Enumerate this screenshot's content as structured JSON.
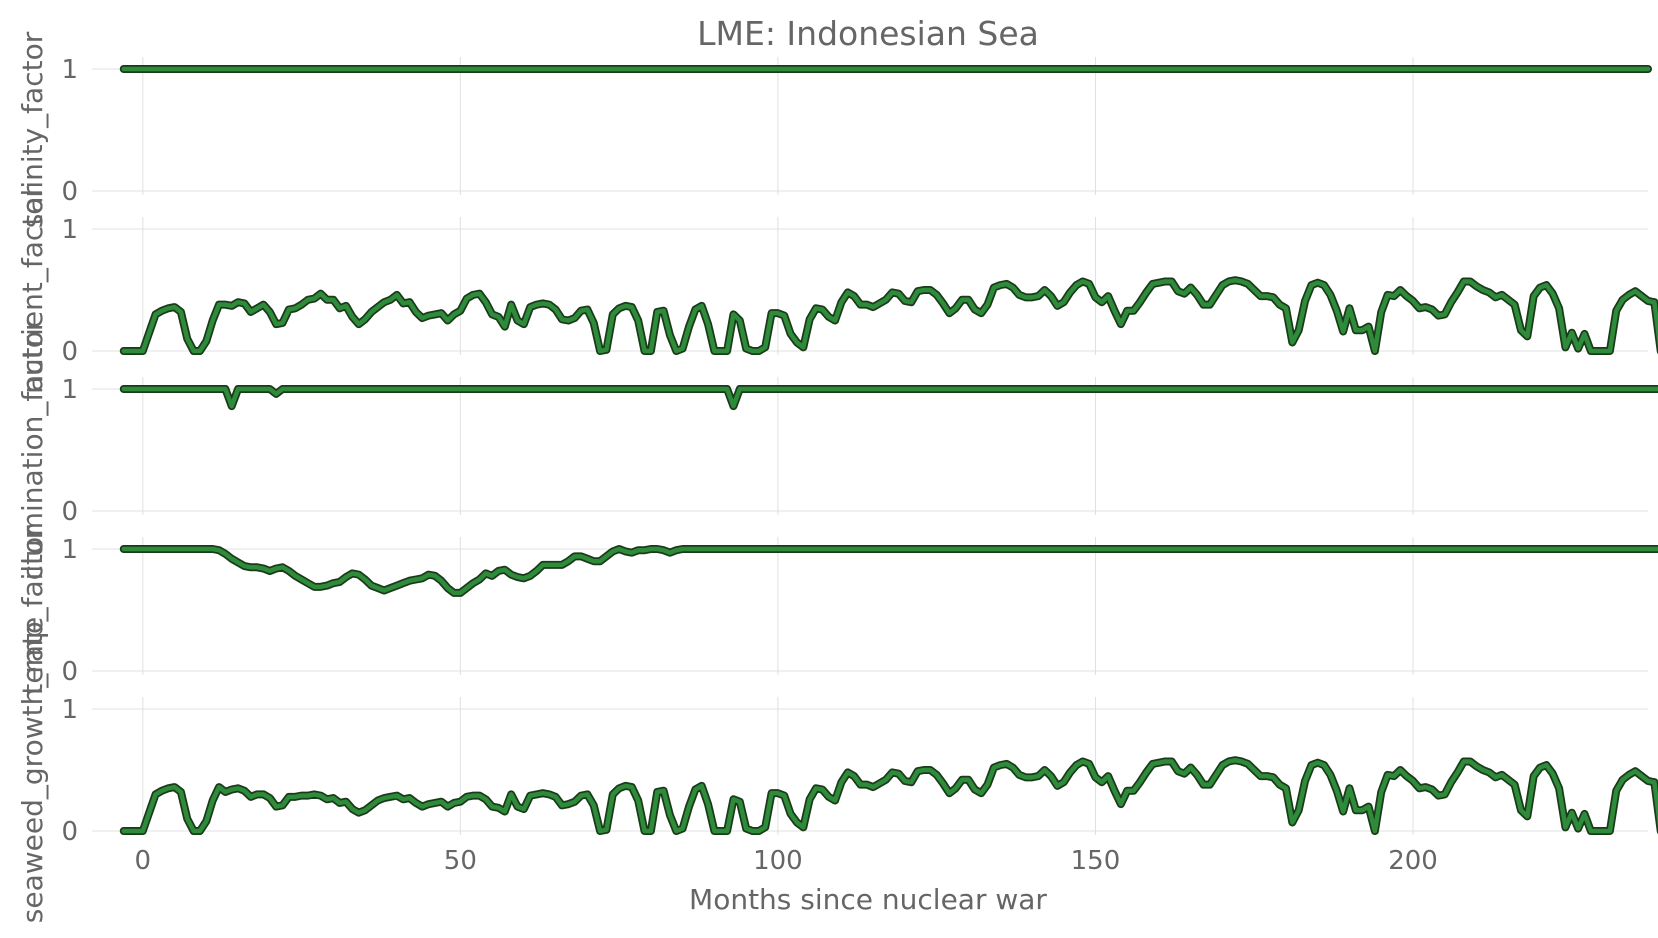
{
  "chart_data": {
    "type": "line",
    "title": "LME: Indonesian Sea",
    "xlabel": "Months since nuclear war",
    "x_ticks": [
      0,
      50,
      100,
      150,
      200
    ],
    "xlim": [
      -8,
      237
    ],
    "grid": true,
    "line_color": "#2e8b3a",
    "line_outline_color": "#1b3a1b",
    "panels": [
      {
        "ylabel": "salinity_factor",
        "y_ticks": [
          0,
          1
        ],
        "ylim": [
          0,
          1
        ],
        "x_start": -3,
        "values": [
          1,
          1,
          1,
          1,
          1,
          1,
          1,
          1,
          1,
          1,
          1,
          1,
          1,
          1,
          1,
          1,
          1,
          1,
          1,
          1,
          1,
          1,
          1,
          1,
          1,
          1,
          1,
          1,
          1,
          1,
          1,
          1,
          1,
          1,
          1,
          1,
          1,
          1,
          1,
          1,
          1,
          1,
          1,
          1,
          1,
          1,
          1,
          1,
          1,
          1,
          1,
          1,
          1,
          1,
          1,
          1,
          1,
          1,
          1,
          1,
          1,
          1,
          1,
          1,
          1,
          1,
          1,
          1,
          1,
          1,
          1,
          1,
          1,
          1,
          1,
          1,
          1,
          1,
          1,
          1,
          1,
          1,
          1,
          1,
          1,
          1,
          1,
          1,
          1,
          1,
          1,
          1,
          1,
          1,
          1,
          1,
          1,
          1,
          1,
          1,
          1,
          1,
          1,
          1,
          1,
          1,
          1,
          1,
          1,
          1,
          1,
          1,
          1,
          1,
          1,
          1,
          1,
          1,
          1,
          1,
          1,
          1,
          1,
          1,
          1,
          1,
          1,
          1,
          1,
          1,
          1,
          1,
          1,
          1,
          1,
          1,
          1,
          1,
          1,
          1,
          1,
          1,
          1,
          1,
          1,
          1,
          1,
          1,
          1,
          1,
          1,
          1,
          1,
          1,
          1,
          1,
          1,
          1,
          1,
          1,
          1,
          1,
          1,
          1,
          1,
          1,
          1,
          1,
          1,
          1,
          1,
          1,
          1,
          1,
          1,
          1,
          1,
          1,
          1,
          1,
          1,
          1,
          1,
          1,
          1,
          1,
          1,
          1,
          1,
          1,
          1,
          1,
          1,
          1,
          1,
          1,
          1,
          1,
          1,
          1,
          1,
          1,
          1,
          1,
          1,
          1,
          1,
          1,
          1,
          1,
          1,
          1,
          1,
          1,
          1,
          1,
          1,
          1,
          1,
          1,
          1,
          1,
          1,
          1,
          1,
          1,
          1,
          1,
          1,
          1,
          1,
          1,
          1,
          1,
          1,
          1,
          1,
          1,
          1,
          1,
          1
        ]
      },
      {
        "ylabel": "nutrient_factor",
        "y_ticks": [
          0,
          1
        ],
        "ylim": [
          0,
          1
        ],
        "x_start": -3,
        "values": [
          0,
          0,
          0,
          0,
          0.15,
          0.3,
          0.33,
          0.35,
          0.36,
          0.32,
          0.1,
          0,
          0,
          0.08,
          0.25,
          0.38,
          0.38,
          0.37,
          0.4,
          0.39,
          0.32,
          0.35,
          0.38,
          0.32,
          0.22,
          0.23,
          0.34,
          0.35,
          0.38,
          0.42,
          0.43,
          0.47,
          0.42,
          0.42,
          0.35,
          0.37,
          0.28,
          0.22,
          0.26,
          0.32,
          0.36,
          0.4,
          0.42,
          0.46,
          0.39,
          0.4,
          0.32,
          0.27,
          0.29,
          0.3,
          0.31,
          0.25,
          0.3,
          0.33,
          0.43,
          0.46,
          0.47,
          0.4,
          0.3,
          0.28,
          0.2,
          0.38,
          0.25,
          0.22,
          0.36,
          0.38,
          0.39,
          0.38,
          0.34,
          0.26,
          0.25,
          0.27,
          0.33,
          0.34,
          0.23,
          0,
          0.01,
          0.3,
          0.35,
          0.37,
          0.36,
          0.25,
          0,
          0,
          0.32,
          0.33,
          0.13,
          0,
          0.02,
          0.2,
          0.34,
          0.37,
          0.22,
          0,
          0,
          0,
          0.3,
          0.25,
          0.02,
          0,
          0,
          0.03,
          0.31,
          0.31,
          0.29,
          0.14,
          0.07,
          0.03,
          0.26,
          0.35,
          0.34,
          0.28,
          0.25,
          0.4,
          0.48,
          0.45,
          0.38,
          0.38,
          0.36,
          0.39,
          0.42,
          0.48,
          0.47,
          0.41,
          0.4,
          0.49,
          0.5,
          0.5,
          0.46,
          0.39,
          0.31,
          0.35,
          0.42,
          0.42,
          0.34,
          0.31,
          0.38,
          0.52,
          0.54,
          0.55,
          0.52,
          0.46,
          0.44,
          0.44,
          0.45,
          0.5,
          0.45,
          0.37,
          0.4,
          0.48,
          0.54,
          0.57,
          0.55,
          0.44,
          0.4,
          0.45,
          0.33,
          0.22,
          0.33,
          0.33,
          0.4,
          0.48,
          0.55,
          0.56,
          0.57,
          0.57,
          0.49,
          0.47,
          0.52,
          0.46,
          0.38,
          0.38,
          0.46,
          0.54,
          0.57,
          0.58,
          0.57,
          0.55,
          0.5,
          0.45,
          0.45,
          0.44,
          0.38,
          0.35,
          0.07,
          0.17,
          0.41,
          0.54,
          0.56,
          0.54,
          0.46,
          0.33,
          0.16,
          0.35,
          0.17,
          0.17,
          0.2,
          0,
          0.32,
          0.46,
          0.45,
          0.5,
          0.45,
          0.41,
          0.35,
          0.36,
          0.34,
          0.29,
          0.3,
          0.4,
          0.48,
          0.57,
          0.57,
          0.53,
          0.5,
          0.48,
          0.44,
          0.46,
          0.42,
          0.38,
          0.17,
          0.12,
          0.45,
          0.52,
          0.54,
          0.47,
          0.35,
          0.03,
          0.15,
          0.02,
          0.14,
          0,
          0,
          0,
          0,
          0.33,
          0.42,
          0.46,
          0.49,
          0.45,
          0.41,
          0.4,
          0
        ]
      },
      {
        "ylabel": "illumination_factor",
        "y_ticks": [
          0,
          1
        ],
        "ylim": [
          0,
          1
        ],
        "x_start": -3,
        "values": [
          1,
          1,
          1,
          1,
          1,
          1,
          1,
          1,
          1,
          1,
          1,
          1,
          1,
          1,
          1,
          1,
          1,
          0.86,
          1,
          1,
          1,
          1,
          1,
          1,
          0.96,
          1,
          1,
          1,
          1,
          1,
          1,
          1,
          1,
          1,
          1,
          1,
          1,
          1,
          1,
          1,
          1,
          1,
          1,
          1,
          1,
          1,
          1,
          1,
          1,
          1,
          1,
          1,
          1,
          1,
          1,
          1,
          1,
          1,
          1,
          1,
          1,
          1,
          1,
          1,
          1,
          1,
          1,
          1,
          1,
          1,
          1,
          1,
          1,
          1,
          1,
          1,
          1,
          1,
          1,
          1,
          1,
          1,
          1,
          1,
          1,
          1,
          1,
          1,
          1,
          1,
          1,
          1,
          1,
          1,
          1,
          1,
          0.86,
          1,
          1,
          1,
          1,
          1,
          1,
          1,
          1,
          1,
          1,
          1,
          1,
          1,
          1,
          1,
          1,
          1,
          1,
          1,
          1,
          1,
          1,
          1,
          1,
          1,
          1,
          1,
          1,
          1,
          1,
          1,
          1,
          1,
          1,
          1,
          1,
          1,
          1,
          1,
          1,
          1,
          1,
          1,
          1,
          1,
          1,
          1,
          1,
          1,
          1,
          1,
          1,
          1,
          1,
          1,
          1,
          1,
          1,
          1,
          1,
          1,
          1,
          1,
          1,
          1,
          1,
          1,
          1,
          1,
          1,
          1,
          1,
          1,
          1,
          1,
          1,
          1,
          1,
          1,
          1,
          1,
          1,
          1,
          1,
          1,
          1,
          1,
          1,
          1,
          1,
          1,
          1,
          1,
          1,
          1,
          1,
          1,
          1,
          1,
          1,
          1,
          1,
          1,
          1,
          1,
          1,
          1,
          1,
          1,
          1,
          1,
          1,
          1,
          1,
          1,
          1,
          1,
          1,
          1,
          1,
          1,
          1,
          1,
          1,
          1,
          1,
          1,
          1,
          1,
          1,
          1,
          1,
          1,
          1,
          1,
          1,
          1,
          1,
          1,
          1,
          1,
          1,
          1,
          1,
          1,
          1,
          1,
          1,
          1
        ]
      },
      {
        "ylabel": "temp_factor",
        "y_ticks": [
          0,
          1
        ],
        "ylim": [
          0,
          1
        ],
        "x_start": -3,
        "values": [
          1,
          1,
          1,
          1,
          1,
          1,
          1,
          1,
          1,
          1,
          1,
          1,
          1,
          1,
          1,
          0.99,
          0.96,
          0.92,
          0.89,
          0.86,
          0.85,
          0.85,
          0.84,
          0.82,
          0.84,
          0.85,
          0.82,
          0.78,
          0.75,
          0.72,
          0.69,
          0.69,
          0.7,
          0.72,
          0.73,
          0.77,
          0.8,
          0.79,
          0.75,
          0.7,
          0.68,
          0.66,
          0.68,
          0.7,
          0.72,
          0.74,
          0.75,
          0.76,
          0.79,
          0.78,
          0.74,
          0.68,
          0.64,
          0.64,
          0.68,
          0.72,
          0.75,
          0.8,
          0.78,
          0.82,
          0.83,
          0.79,
          0.77,
          0.76,
          0.78,
          0.82,
          0.87,
          0.87,
          0.87,
          0.87,
          0.9,
          0.94,
          0.94,
          0.92,
          0.9,
          0.9,
          0.94,
          0.98,
          1,
          0.98,
          0.97,
          0.99,
          0.99,
          1,
          1,
          0.99,
          0.97,
          0.99,
          1,
          1,
          1,
          1,
          1,
          1,
          1,
          1,
          1,
          1,
          1,
          1,
          1,
          1,
          1,
          1,
          1,
          1,
          1,
          1,
          1,
          1,
          1,
          1,
          1,
          1,
          1,
          1,
          1,
          1,
          1,
          1,
          1,
          1,
          1,
          1,
          1,
          1,
          1,
          1,
          1,
          1,
          1,
          1,
          1,
          1,
          1,
          1,
          1,
          1,
          1,
          1,
          1,
          1,
          1,
          1,
          1,
          1,
          1,
          1,
          1,
          1,
          1,
          1,
          1,
          1,
          1,
          1,
          1,
          1,
          1,
          1,
          1,
          1,
          1,
          1,
          1,
          1,
          1,
          1,
          1,
          1,
          1,
          1,
          1,
          1,
          1,
          1,
          1,
          1,
          1,
          1,
          1,
          1,
          1,
          1,
          1,
          1,
          1,
          1,
          1,
          1,
          1,
          1,
          1,
          1,
          1,
          1,
          1,
          1,
          1,
          1,
          1,
          1,
          1,
          1,
          1,
          1,
          1,
          1,
          1,
          1,
          1,
          1,
          1,
          1,
          1,
          1,
          1,
          1,
          1,
          1,
          1,
          1,
          1,
          1,
          1,
          1,
          1,
          1,
          1,
          1,
          1,
          1,
          1,
          1,
          1,
          1,
          1,
          1,
          1,
          1,
          1,
          1,
          1,
          1,
          1,
          1,
          1,
          1,
          1,
          1,
          1,
          1,
          1,
          1
        ]
      },
      {
        "ylabel": "seaweed_growth_rate",
        "y_ticks": [
          0,
          1
        ],
        "ylim": [
          0,
          1
        ],
        "x_start": -3,
        "values": [
          0,
          0,
          0,
          0,
          0.15,
          0.3,
          0.33,
          0.35,
          0.36,
          0.32,
          0.1,
          0,
          0,
          0.08,
          0.25,
          0.36,
          0.32,
          0.34,
          0.35,
          0.33,
          0.28,
          0.3,
          0.3,
          0.27,
          0.2,
          0.21,
          0.28,
          0.28,
          0.29,
          0.29,
          0.3,
          0.29,
          0.26,
          0.27,
          0.23,
          0.24,
          0.18,
          0.15,
          0.17,
          0.21,
          0.25,
          0.27,
          0.28,
          0.29,
          0.26,
          0.27,
          0.23,
          0.2,
          0.22,
          0.23,
          0.24,
          0.2,
          0.23,
          0.24,
          0.28,
          0.29,
          0.29,
          0.26,
          0.2,
          0.19,
          0.16,
          0.3,
          0.2,
          0.18,
          0.29,
          0.3,
          0.31,
          0.3,
          0.28,
          0.21,
          0.22,
          0.24,
          0.29,
          0.3,
          0.21,
          0,
          0.01,
          0.3,
          0.35,
          0.37,
          0.36,
          0.25,
          0,
          0,
          0.32,
          0.33,
          0.13,
          0,
          0.02,
          0.2,
          0.34,
          0.37,
          0.22,
          0,
          0,
          0,
          0.26,
          0.24,
          0.02,
          0,
          0,
          0.03,
          0.31,
          0.31,
          0.29,
          0.14,
          0.07,
          0.03,
          0.26,
          0.35,
          0.34,
          0.28,
          0.25,
          0.4,
          0.48,
          0.45,
          0.38,
          0.38,
          0.36,
          0.39,
          0.42,
          0.48,
          0.47,
          0.41,
          0.4,
          0.49,
          0.5,
          0.5,
          0.46,
          0.39,
          0.31,
          0.35,
          0.42,
          0.42,
          0.34,
          0.31,
          0.38,
          0.52,
          0.54,
          0.55,
          0.52,
          0.46,
          0.44,
          0.44,
          0.45,
          0.5,
          0.45,
          0.37,
          0.4,
          0.48,
          0.54,
          0.57,
          0.55,
          0.44,
          0.4,
          0.45,
          0.33,
          0.22,
          0.33,
          0.33,
          0.4,
          0.48,
          0.55,
          0.56,
          0.57,
          0.57,
          0.49,
          0.47,
          0.52,
          0.46,
          0.38,
          0.38,
          0.46,
          0.54,
          0.57,
          0.58,
          0.57,
          0.55,
          0.5,
          0.45,
          0.45,
          0.44,
          0.38,
          0.35,
          0.07,
          0.17,
          0.41,
          0.54,
          0.56,
          0.54,
          0.46,
          0.33,
          0.16,
          0.35,
          0.17,
          0.17,
          0.2,
          0,
          0.32,
          0.46,
          0.45,
          0.5,
          0.45,
          0.41,
          0.35,
          0.36,
          0.34,
          0.29,
          0.3,
          0.4,
          0.48,
          0.57,
          0.57,
          0.53,
          0.5,
          0.48,
          0.44,
          0.46,
          0.42,
          0.38,
          0.17,
          0.12,
          0.45,
          0.52,
          0.54,
          0.47,
          0.35,
          0.03,
          0.15,
          0.02,
          0.14,
          0,
          0,
          0,
          0,
          0.33,
          0.42,
          0.46,
          0.49,
          0.45,
          0.41,
          0.4,
          0
        ]
      }
    ]
  }
}
